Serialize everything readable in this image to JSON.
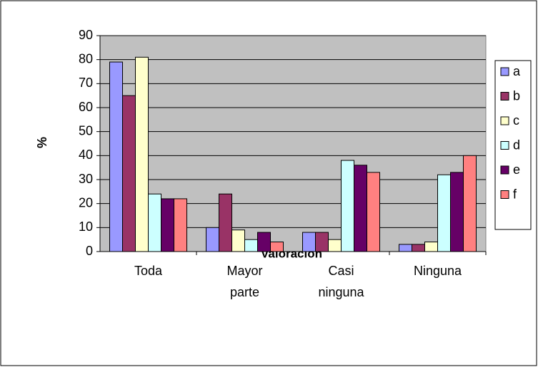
{
  "chart_data": {
    "type": "bar",
    "x_label": "Valoración",
    "y_label": "%",
    "categories": [
      "Toda",
      "Mayor parte",
      "Casi ninguna",
      "Ninguna"
    ],
    "series": [
      {
        "name": "a",
        "color": "#9999ff",
        "values": [
          79,
          10,
          8,
          3
        ]
      },
      {
        "name": "b",
        "color": "#993366",
        "values": [
          65,
          24,
          8,
          3
        ]
      },
      {
        "name": "c",
        "color": "#ffffcc",
        "values": [
          81,
          9,
          5,
          4
        ]
      },
      {
        "name": "d",
        "color": "#ccffff",
        "values": [
          24,
          5,
          38,
          32
        ]
      },
      {
        "name": "e",
        "color": "#660066",
        "values": [
          22,
          8,
          36,
          33
        ]
      },
      {
        "name": "f",
        "color": "#ff8080",
        "values": [
          22,
          4,
          33,
          40
        ]
      }
    ],
    "ylim": [
      0,
      90
    ],
    "yticks": [
      0,
      10,
      20,
      30,
      40,
      50,
      60,
      70,
      80,
      90
    ],
    "grid": true,
    "legend": "right",
    "plot_background": "#c0c0c0"
  }
}
